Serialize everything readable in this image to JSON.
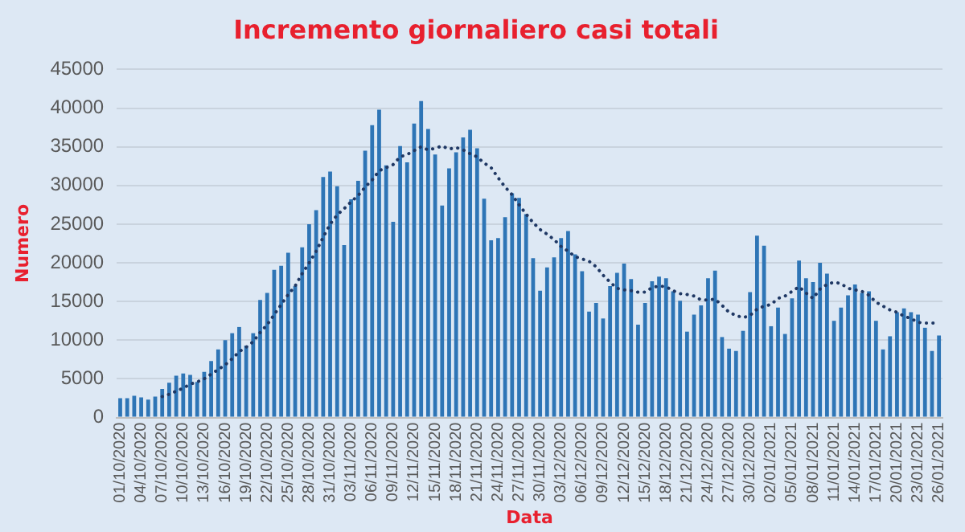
{
  "chart_data": {
    "type": "bar",
    "title": "Incremento giornaliero casi totali",
    "xlabel": "Data",
    "ylabel": "Numero",
    "categories": [
      "01/10/2020",
      null,
      null,
      "04/10/2020",
      null,
      null,
      "07/10/2020",
      null,
      null,
      "10/10/2020",
      null,
      null,
      "13/10/2020",
      null,
      null,
      "16/10/2020",
      null,
      null,
      "19/10/2020",
      null,
      null,
      "22/10/2020",
      null,
      null,
      "25/10/2020",
      null,
      null,
      "28/10/2020",
      null,
      null,
      "31/10/2020",
      null,
      null,
      "03/11/2020",
      null,
      null,
      "06/11/2020",
      null,
      null,
      "09/11/2020",
      null,
      null,
      "12/11/2020",
      null,
      null,
      "15/11/2020",
      null,
      null,
      "18/11/2020",
      null,
      null,
      "21/11/2020",
      null,
      null,
      "24/11/2020",
      null,
      null,
      "27/11/2020",
      null,
      null,
      "30/11/2020",
      null,
      null,
      "03/12/2020",
      null,
      null,
      "06/12/2020",
      null,
      null,
      "09/12/2020",
      null,
      null,
      "12/12/2020",
      null,
      null,
      "15/12/2020",
      null,
      null,
      "18/12/2020",
      null,
      null,
      "21/12/2020",
      null,
      null,
      "24/12/2020",
      null,
      null,
      "27/12/2020",
      null,
      null,
      "30/12/2020",
      null,
      null,
      "02/01/2021",
      null,
      null,
      "05/01/2021",
      null,
      null,
      "08/01/2021",
      null,
      null,
      "11/01/2021",
      null,
      null,
      "14/01/2021",
      null,
      null,
      "17/01/2021",
      null,
      null,
      "20/01/2021",
      null,
      null,
      "23/01/2021",
      null,
      null,
      "26/01/2021"
    ],
    "series": [
      {
        "color": "#2e75b6",
        "values": [
          2500,
          2500,
          2800,
          2600,
          2300,
          2700,
          3700,
          4500,
          5400,
          5700,
          5500,
          4600,
          5900,
          7300,
          8800,
          10000,
          10900,
          11700,
          9300,
          10900,
          15200,
          16100,
          19100,
          19600,
          21300,
          17000,
          22000,
          25000,
          26800,
          31100,
          31800,
          29900,
          22300,
          28200,
          30600,
          34500,
          37800,
          39800,
          32600,
          25300,
          35100,
          33000,
          38000,
          40900,
          37300,
          34000,
          27400,
          32200,
          34300,
          36200,
          37200,
          34800,
          28300,
          22900,
          23200,
          25900,
          29000,
          28400,
          26300,
          20600,
          16400,
          19400,
          20700,
          23200,
          24100,
          21100,
          18900,
          13700,
          14800,
          12800,
          17000,
          18700,
          19900,
          17900,
          12000,
          14800,
          17600,
          18200,
          18000,
          16300,
          15100,
          11100,
          13300,
          14500,
          18000,
          19000,
          10400,
          8900,
          8600,
          11200,
          16200,
          23500,
          22200,
          11800,
          14200,
          10800,
          15400,
          20300,
          18000,
          17500,
          20000,
          18600,
          12500,
          14200,
          15800,
          17200,
          16100,
          16300,
          12500,
          8800,
          10500,
          13600,
          14100,
          13600,
          13300,
          11600,
          8600,
          10600
        ]
      },
      {
        "type": "line",
        "color": "#1f3864",
        "line_style": "dotted",
        "marker": "none",
        "values": [
          null,
          null,
          null,
          null,
          null,
          null,
          2700,
          3000,
          3400,
          3800,
          4300,
          4600,
          5000,
          5600,
          6200,
          6800,
          7600,
          8500,
          9100,
          9800,
          11000,
          12000,
          13300,
          14600,
          15900,
          17000,
          18600,
          20000,
          21500,
          23300,
          25000,
          26200,
          27000,
          27900,
          28700,
          29800,
          30700,
          31900,
          32300,
          32700,
          33700,
          34000,
          34500,
          35000,
          34600,
          34800,
          35100,
          34700,
          34900,
          34600,
          34100,
          33700,
          32900,
          32300,
          31000,
          29800,
          28800,
          27500,
          26300,
          25200,
          24300,
          23700,
          23000,
          22100,
          21500,
          20800,
          20500,
          20200,
          19500,
          18400,
          17500,
          16700,
          16500,
          16400,
          16200,
          16200,
          16800,
          17000,
          16900,
          16400,
          16000,
          15900,
          15700,
          15200,
          15200,
          15300,
          14500,
          13600,
          13200,
          12900,
          13200,
          14000,
          14400,
          14600,
          15400,
          15700,
          16300,
          16900,
          16100,
          15400,
          16600,
          17200,
          17500,
          17300,
          16700,
          16500,
          16300,
          15800,
          14900,
          14400,
          13900,
          13600,
          13100,
          12800,
          12300,
          12200,
          12200,
          12200
        ]
      }
    ],
    "ylim": [
      0,
      45000
    ],
    "yticks": [
      0,
      5000,
      10000,
      15000,
      20000,
      25000,
      30000,
      35000,
      40000,
      45000
    ],
    "grid": "y",
    "legend": false
  }
}
